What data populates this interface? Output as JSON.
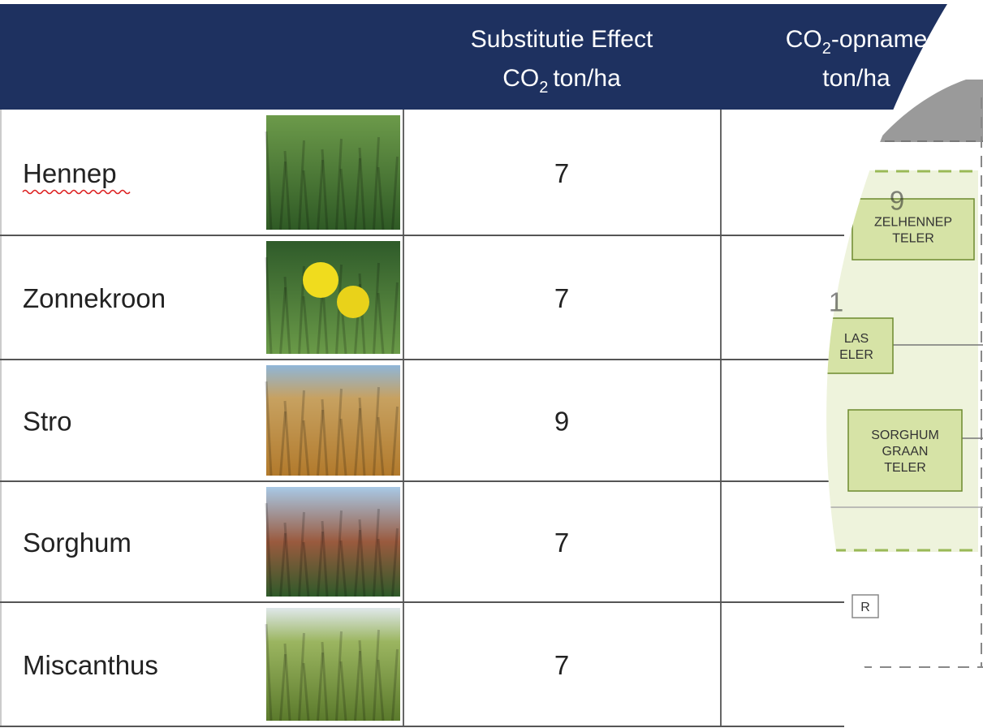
{
  "table": {
    "columns": [
      {
        "line1": "Substitutie Effect",
        "line2": {
          "base": "CO",
          "sub": "2",
          "rest": "ton/ha"
        }
      },
      {
        "line1": {
          "base": "CO",
          "sub": "2",
          "rest": "-opname"
        },
        "line2": "ton/ha"
      }
    ],
    "rows": [
      {
        "name": "Hennep",
        "substitution": 7,
        "uptake": 9
      },
      {
        "name": "Zonnekroon",
        "substitution": 7,
        "uptake": 1
      },
      {
        "name": "Stro",
        "substitution": 9
      },
      {
        "name": "Sorghum",
        "substitution": 7
      },
      {
        "name": "Miscanthus",
        "substitution": 7
      }
    ]
  },
  "diagram": {
    "boxes": [
      {
        "lines": [
          "ZELHENNEP",
          "TELER"
        ]
      },
      {
        "lines": [
          "LAS",
          "ELER"
        ]
      },
      {
        "lines": [
          "SORGHUM",
          "GRAAN",
          "TELER"
        ]
      },
      {
        "lines": [
          "R"
        ]
      }
    ]
  }
}
